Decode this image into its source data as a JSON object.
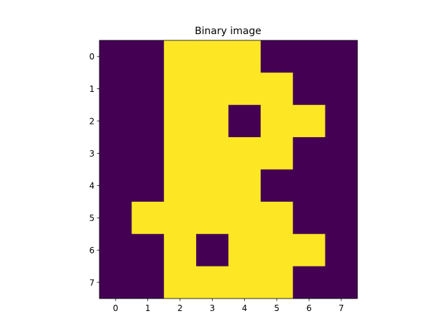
{
  "chart_data": {
    "type": "heatmap",
    "title": "Binary image",
    "xlabel": "",
    "ylabel": "",
    "x_ticks": [
      "0",
      "1",
      "2",
      "3",
      "4",
      "5",
      "6",
      "7"
    ],
    "y_ticks": [
      "0",
      "1",
      "2",
      "3",
      "4",
      "5",
      "6",
      "7"
    ],
    "xlim": [
      -0.5,
      7.5
    ],
    "ylim": [
      7.5,
      -0.5
    ],
    "grid": false,
    "colormap": {
      "0": "#440154",
      "1": "#fde725"
    },
    "values": [
      [
        0,
        0,
        1,
        1,
        1,
        0,
        0,
        0
      ],
      [
        0,
        0,
        1,
        1,
        1,
        1,
        0,
        0
      ],
      [
        0,
        0,
        1,
        1,
        0,
        1,
        1,
        0
      ],
      [
        0,
        0,
        1,
        1,
        1,
        1,
        0,
        0
      ],
      [
        0,
        0,
        1,
        1,
        1,
        0,
        0,
        0
      ],
      [
        0,
        1,
        1,
        1,
        1,
        1,
        0,
        0
      ],
      [
        0,
        0,
        1,
        0,
        1,
        1,
        1,
        0
      ],
      [
        0,
        0,
        1,
        1,
        1,
        1,
        0,
        0
      ]
    ]
  }
}
